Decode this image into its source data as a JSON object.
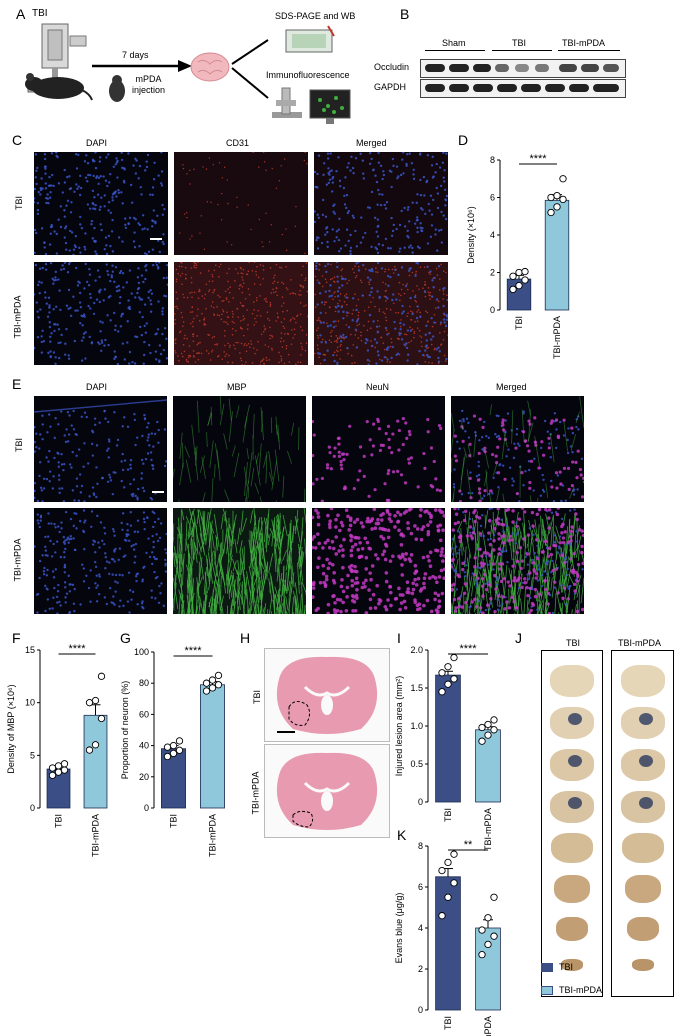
{
  "panels": {
    "A": "A",
    "B": "B",
    "C": "C",
    "D": "D",
    "E": "E",
    "F": "F",
    "G": "G",
    "H": "H",
    "I": "I",
    "J": "J",
    "K": "K"
  },
  "panel_a": {
    "tbi_label": "TBI",
    "days_label": "7 days",
    "injection_label": "mPDA\ninjection",
    "sds_label": "SDS-PAGE and WB",
    "if_label": "Immunofluorescence"
  },
  "panel_b": {
    "groups": [
      "Sham",
      "TBI",
      "TBI-mPDA"
    ],
    "rows": [
      "Occludin",
      "GAPDH"
    ]
  },
  "panel_c": {
    "columns": [
      "DAPI",
      "CD31",
      "Merged"
    ],
    "rows": [
      "TBI",
      "TBI-mPDA"
    ]
  },
  "panel_e": {
    "columns": [
      "DAPI",
      "MBP",
      "NeuN",
      "Merged"
    ],
    "rows": [
      "TBI",
      "TBI-mPDA"
    ]
  },
  "panel_h": {
    "rows": [
      "TBI",
      "TBI-mPDA"
    ]
  },
  "panel_j": {
    "columns": [
      "TBI",
      "TBI-mPDA"
    ]
  },
  "legend": {
    "items": [
      "TBI",
      "TBI-mPDA"
    ]
  },
  "colors": {
    "tbi": "#3b4f86",
    "tbi_mpda": "#8fc7db",
    "dapi": "#3a55c8",
    "cd31": "#c0392b",
    "mbp": "#3fae3f",
    "neun": "#c23ac2"
  },
  "chart_data": [
    {
      "panel": "D",
      "type": "bar",
      "categories": [
        "TBI",
        "TBI-mPDA"
      ],
      "values": [
        1.65,
        5.85
      ],
      "sem": [
        0.2,
        0.3
      ],
      "points": [
        [
          1.1,
          1.3,
          1.6,
          1.8,
          2.0,
          2.05
        ],
        [
          5.2,
          5.5,
          5.9,
          6.0,
          6.1,
          7.0
        ]
      ],
      "ylabel": "Density (×10⁶)",
      "ylim": [
        0,
        8
      ],
      "yticks": [
        "0",
        "2",
        "4",
        "6",
        "8"
      ],
      "significance": "****"
    },
    {
      "panel": "F",
      "type": "bar",
      "categories": [
        "TBI",
        "TBI-mPDA"
      ],
      "values": [
        3.7,
        8.8
      ],
      "sem": [
        0.3,
        1.0
      ],
      "points": [
        [
          3.1,
          3.4,
          3.6,
          3.8,
          4.0,
          4.2
        ],
        [
          5.5,
          6.0,
          8.5,
          10.0,
          10.2,
          12.5
        ]
      ],
      "ylabel": "Density of MBP (×10⁶)",
      "ylim": [
        0,
        15
      ],
      "yticks": [
        "0",
        "5",
        "10",
        "15"
      ],
      "significance": "****"
    },
    {
      "panel": "G",
      "type": "bar",
      "categories": [
        "TBI",
        "TBI-mPDA"
      ],
      "values": [
        38,
        79
      ],
      "sem": [
        2,
        2
      ],
      "points": [
        [
          33,
          35,
          37,
          39,
          40,
          43
        ],
        [
          75,
          77,
          79,
          80,
          82,
          85
        ]
      ],
      "ylabel": "Proportion of neuron (%)",
      "ylim": [
        0,
        100
      ],
      "yticks": [
        "0",
        "20",
        "40",
        "60",
        "80",
        "100"
      ],
      "significance": "****"
    },
    {
      "panel": "I",
      "type": "bar",
      "categories": [
        "TBI",
        "TBI-mPDA"
      ],
      "values": [
        1.67,
        0.95
      ],
      "sem": [
        0.05,
        0.04
      ],
      "points": [
        [
          1.45,
          1.55,
          1.62,
          1.7,
          1.78,
          1.9
        ],
        [
          0.8,
          0.88,
          0.95,
          0.98,
          1.02,
          1.08
        ]
      ],
      "ylabel": "Injured lesion area (mm²)",
      "ylim": [
        0,
        2.0
      ],
      "yticks": [
        "0",
        "0.5",
        "1.0",
        "1.5",
        "2.0"
      ],
      "significance": "****"
    },
    {
      "panel": "K",
      "type": "bar",
      "categories": [
        "TBI",
        "TBI-mPDA"
      ],
      "values": [
        6.5,
        4.0
      ],
      "sem": [
        0.4,
        0.4
      ],
      "points": [
        [
          4.6,
          5.5,
          6.2,
          6.8,
          7.2,
          7.6
        ],
        [
          2.7,
          3.2,
          3.6,
          3.9,
          4.5,
          5.5
        ]
      ],
      "ylabel": "Evans blue (μg/g)",
      "ylim": [
        0,
        8
      ],
      "yticks": [
        "0",
        "2",
        "4",
        "6",
        "8"
      ],
      "significance": "**"
    }
  ]
}
